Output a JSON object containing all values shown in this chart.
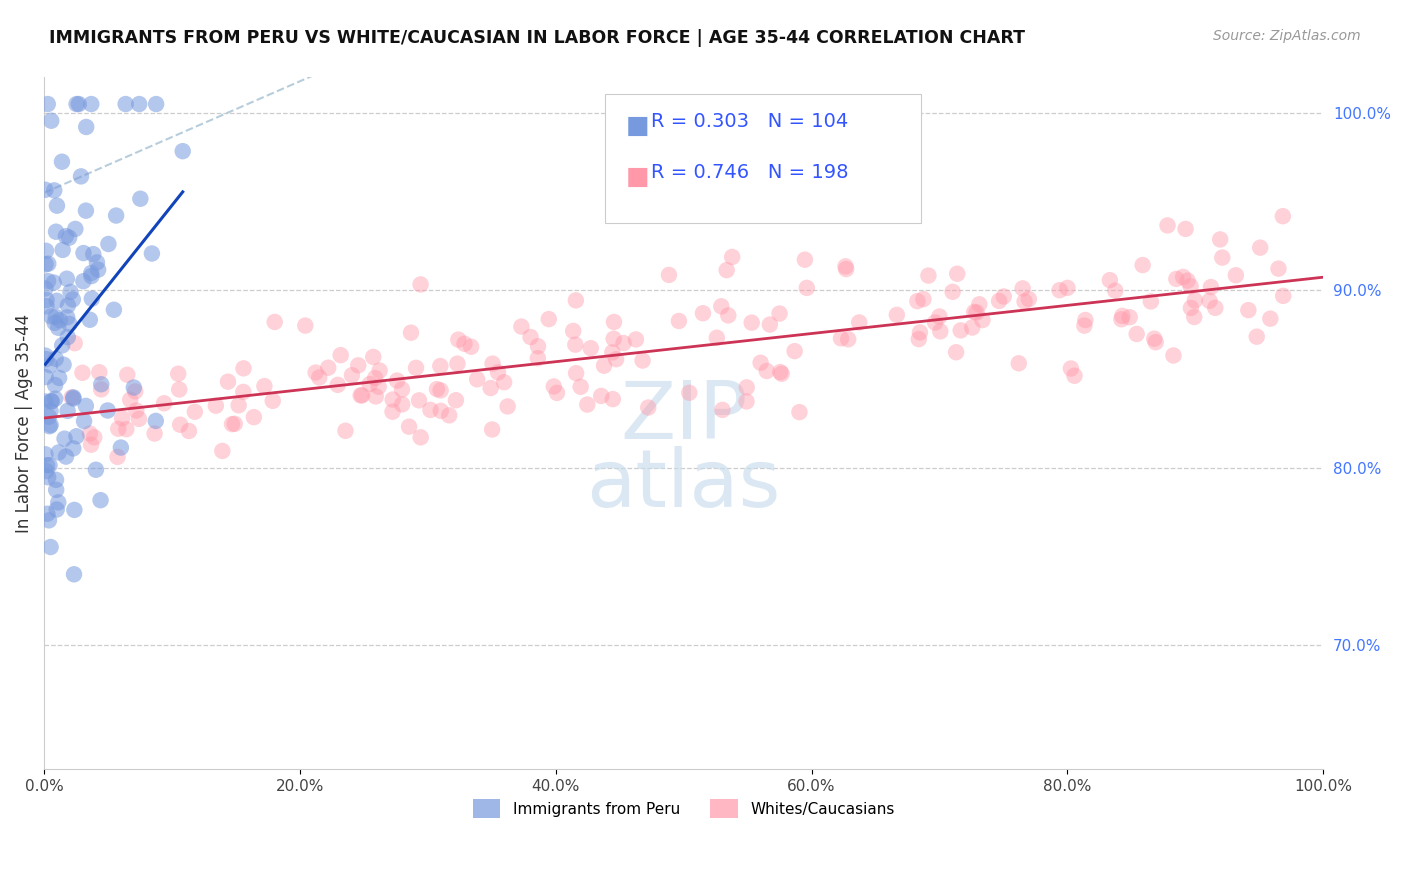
{
  "title": "IMMIGRANTS FROM PERU VS WHITE/CAUCASIAN IN LABOR FORCE | AGE 35-44 CORRELATION CHART",
  "source": "Source: ZipAtlas.com",
  "ylabel": "In Labor Force | Age 35-44",
  "xlim": [
    0.0,
    1.0
  ],
  "ylim": [
    0.63,
    1.02
  ],
  "xticks": [
    0.0,
    0.2,
    0.4,
    0.6,
    0.8,
    1.0
  ],
  "xticklabels": [
    "0.0%",
    "20.0%",
    "40.0%",
    "60.0%",
    "80.0%",
    "100.0%"
  ],
  "yticks_right": [
    1.0,
    0.9,
    0.8,
    0.7
  ],
  "yticklabels_right": [
    "100.0%",
    "90.0%",
    "80.0%",
    "70.0%"
  ],
  "grid_color": "#c8c8c8",
  "background_color": "#ffffff",
  "peru_color": "#7799dd",
  "white_color": "#ff99aa",
  "peru_R": 0.303,
  "peru_N": 104,
  "white_R": 0.746,
  "white_N": 198,
  "legend_value_color": "#3355ff",
  "peru_line_color": "#1144bb",
  "white_line_color": "#cc3355",
  "ref_line_color": "#b0c8d8",
  "watermark_text": "ZIP\natlas",
  "watermark_color": "#c8dded",
  "title_fontsize": 12.5,
  "source_fontsize": 10,
  "tick_fontsize": 11,
  "legend_fontsize": 11,
  "scatter_size": 140,
  "scatter_alpha_peru": 0.55,
  "scatter_alpha_white": 0.45
}
